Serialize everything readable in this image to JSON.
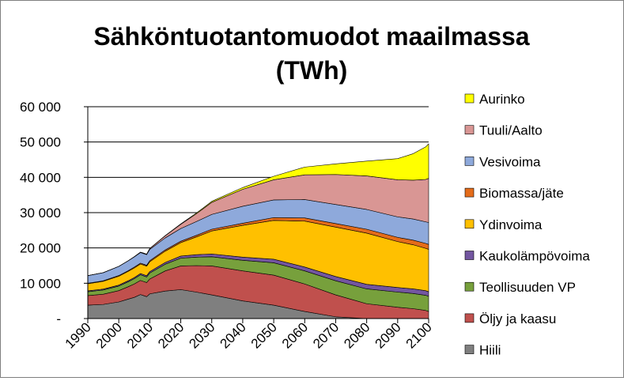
{
  "chart_data": {
    "type": "area",
    "stacked": true,
    "title_line1": "Sähköntuotantomuodot maailmassa",
    "title_line2": "(TWh)",
    "xlabel": "",
    "ylabel": "",
    "x_ticks": [
      "1990",
      "2000",
      "2010",
      "2020",
      "2030",
      "2040",
      "2050",
      "2060",
      "2070",
      "2080",
      "2090",
      "2100"
    ],
    "y_ticks": [
      "-",
      "10 000",
      "20 000",
      "30 000",
      "40 000",
      "50 000",
      "60 000"
    ],
    "ylim": [
      0,
      60000
    ],
    "xlim": [
      1990,
      2100
    ],
    "grid": "horizontal",
    "legend_position": "right",
    "x": [
      1990,
      1995,
      2000,
      2003,
      2005,
      2007,
      2008,
      2009,
      2010,
      2015,
      2020,
      2025,
      2030,
      2040,
      2050,
      2060,
      2070,
      2080,
      2090,
      2095,
      2099,
      2100
    ],
    "series": [
      {
        "name": "Hiili",
        "color": "#7f7f7f",
        "values": [
          3800,
          4000,
          4700,
          5500,
          6000,
          6800,
          6500,
          6200,
          7000,
          7800,
          8200,
          7500,
          6700,
          5000,
          3800,
          2000,
          500,
          0,
          0,
          0,
          0,
          0
        ]
      },
      {
        "name": "Öljy ja kaasu",
        "color": "#c0504d",
        "values": [
          2700,
          2900,
          3200,
          3500,
          3800,
          4000,
          4000,
          4000,
          4200,
          5700,
          6700,
          7500,
          8200,
          8500,
          8500,
          7800,
          6200,
          4200,
          3200,
          2800,
          2300,
          2000
        ]
      },
      {
        "name": "Teollisuuden VP",
        "color": "#77a03c",
        "values": [
          1100,
          1200,
          1300,
          1400,
          1500,
          1600,
          1600,
          1600,
          1700,
          1900,
          2200,
          2400,
          2600,
          3000,
          3500,
          3700,
          4000,
          4200,
          4300,
          4300,
          4300,
          4300
        ]
      },
      {
        "name": "Kaukolämpövoima",
        "color": "#7356a0",
        "values": [
          250,
          250,
          280,
          300,
          320,
          350,
          350,
          350,
          400,
          500,
          600,
          700,
          800,
          900,
          1000,
          1100,
          1200,
          1300,
          1300,
          1300,
          1300,
          1300
        ]
      },
      {
        "name": "Ydinvoima",
        "color": "#ffc000",
        "values": [
          2000,
          2200,
          2500,
          2650,
          2700,
          2700,
          2700,
          2700,
          2800,
          3200,
          3800,
          5000,
          6500,
          9000,
          11000,
          13000,
          14000,
          14500,
          13000,
          12500,
          12000,
          12000
        ]
      },
      {
        "name": "Biomassa/jäte",
        "color": "#e46c1a",
        "values": [
          150,
          150,
          200,
          200,
          250,
          250,
          250,
          250,
          300,
          350,
          400,
          450,
          500,
          600,
          800,
          900,
          1000,
          1100,
          1200,
          1300,
          1400,
          1400
        ]
      },
      {
        "name": "Vesivoima",
        "color": "#8ea9db",
        "values": [
          2150,
          2300,
          2600,
          2800,
          2900,
          3000,
          3000,
          3000,
          3200,
          3400,
          3600,
          3900,
          4200,
          4800,
          5000,
          5200,
          5400,
          5600,
          5800,
          6000,
          6100,
          6200
        ]
      },
      {
        "name": "Tuuli/Aalto",
        "color": "#d99694",
        "values": [
          0,
          0,
          0,
          0,
          50,
          100,
          150,
          150,
          250,
          600,
          1200,
          2200,
          3400,
          4800,
          5700,
          7000,
          8500,
          9500,
          10500,
          11000,
          12000,
          12500
        ]
      },
      {
        "name": "Aurinko",
        "color": "#ffff00",
        "values": [
          0,
          0,
          0,
          0,
          0,
          0,
          0,
          0,
          0,
          50,
          100,
          200,
          300,
          500,
          1000,
          2200,
          3000,
          4200,
          6000,
          7500,
          9200,
          9800
        ]
      }
    ],
    "legend_order": [
      "Aurinko",
      "Tuuli/Aalto",
      "Vesivoima",
      "Biomassa/jäte",
      "Ydinvoima",
      "Kaukolämpövoima",
      "Teollisuuden VP",
      "Öljy ja kaasu",
      "Hiili"
    ]
  }
}
